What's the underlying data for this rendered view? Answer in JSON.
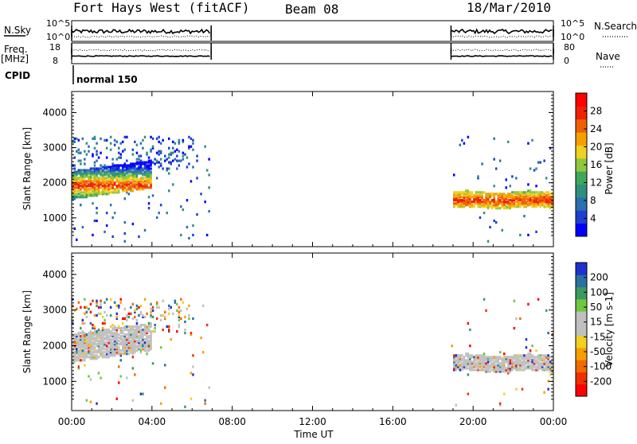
{
  "header": {
    "station": "Fort Hays West (fitACF)",
    "beam": "Beam 08",
    "date": "18/Mar/2010"
  },
  "strip_labels": {
    "nsky": "N.Sky",
    "nsky_ticks": [
      "10^5",
      "10^0"
    ],
    "nsearch": "N.Search",
    "nsearch_ticks": [
      "10^5",
      "10^0"
    ],
    "freq": "Freq.",
    "freq_unit": "[MHz]",
    "freq_ticks": [
      "18",
      "8"
    ],
    "nave": "Nave",
    "nave_ticks": [
      "80",
      "0"
    ],
    "cpid": "CPID",
    "cpid_value": "normal 150"
  },
  "panels": {
    "ylabel": "Slant Range [km]",
    "xlabel": "Time UT"
  },
  "colorbars": {
    "power": {
      "label": "Power [dB]",
      "ticks": [
        "28",
        "24",
        "20",
        "16",
        "12",
        "8",
        "4"
      ],
      "colors": [
        "#0000ff",
        "#1f3fcf",
        "#2a6fb0",
        "#2f8f7f",
        "#3fa85a",
        "#8fc83f",
        "#f0d020",
        "#f5a000",
        "#f06000",
        "#f02000",
        "#ff0000"
      ]
    },
    "velocity": {
      "label": "Velocity [m s-1]",
      "ticks": [
        "200",
        "100",
        "50",
        "15",
        "-15",
        "-50",
        "-100",
        "-200"
      ],
      "colors": [
        "#2030d0",
        "#2a70a0",
        "#3a9a60",
        "#70c840",
        "#c0c0c0",
        "#c0c0c0",
        "#f0d020",
        "#f5a000",
        "#f06a00",
        "#f03000",
        "#ff0000"
      ]
    }
  },
  "chart_data": {
    "type": "heatmap",
    "x_axis": {
      "label": "Time UT",
      "ticks": [
        "00:00",
        "04:00",
        "08:00",
        "12:00",
        "16:00",
        "20:00",
        "00:00"
      ],
      "range_hours": [
        0,
        24
      ]
    },
    "y_axis": {
      "label": "Slant Range [km]",
      "ticks": [
        1000,
        2000,
        3000,
        4000
      ],
      "range_km": [
        180,
        4600
      ]
    },
    "data_intervals_hours": [
      [
        0,
        6.95
      ],
      [
        18.9,
        24
      ]
    ],
    "power_bands": [
      {
        "t_start": 0,
        "t_end": 4,
        "range_km_start": 1500,
        "range_km_end": 2300,
        "power_db": 22
      },
      {
        "t_start": 19,
        "t_end": 24,
        "range_km_start": 1250,
        "range_km_end": 1700,
        "power_db": 24
      }
    ],
    "velocity_bands": [
      {
        "t_start": 0,
        "t_end": 4,
        "range_km_start": 1500,
        "range_km_end": 2300,
        "velocity": 0
      },
      {
        "t_start": 19,
        "t_end": 24,
        "range_km_start": 1250,
        "range_km_end": 1700,
        "velocity": 0
      }
    ]
  }
}
